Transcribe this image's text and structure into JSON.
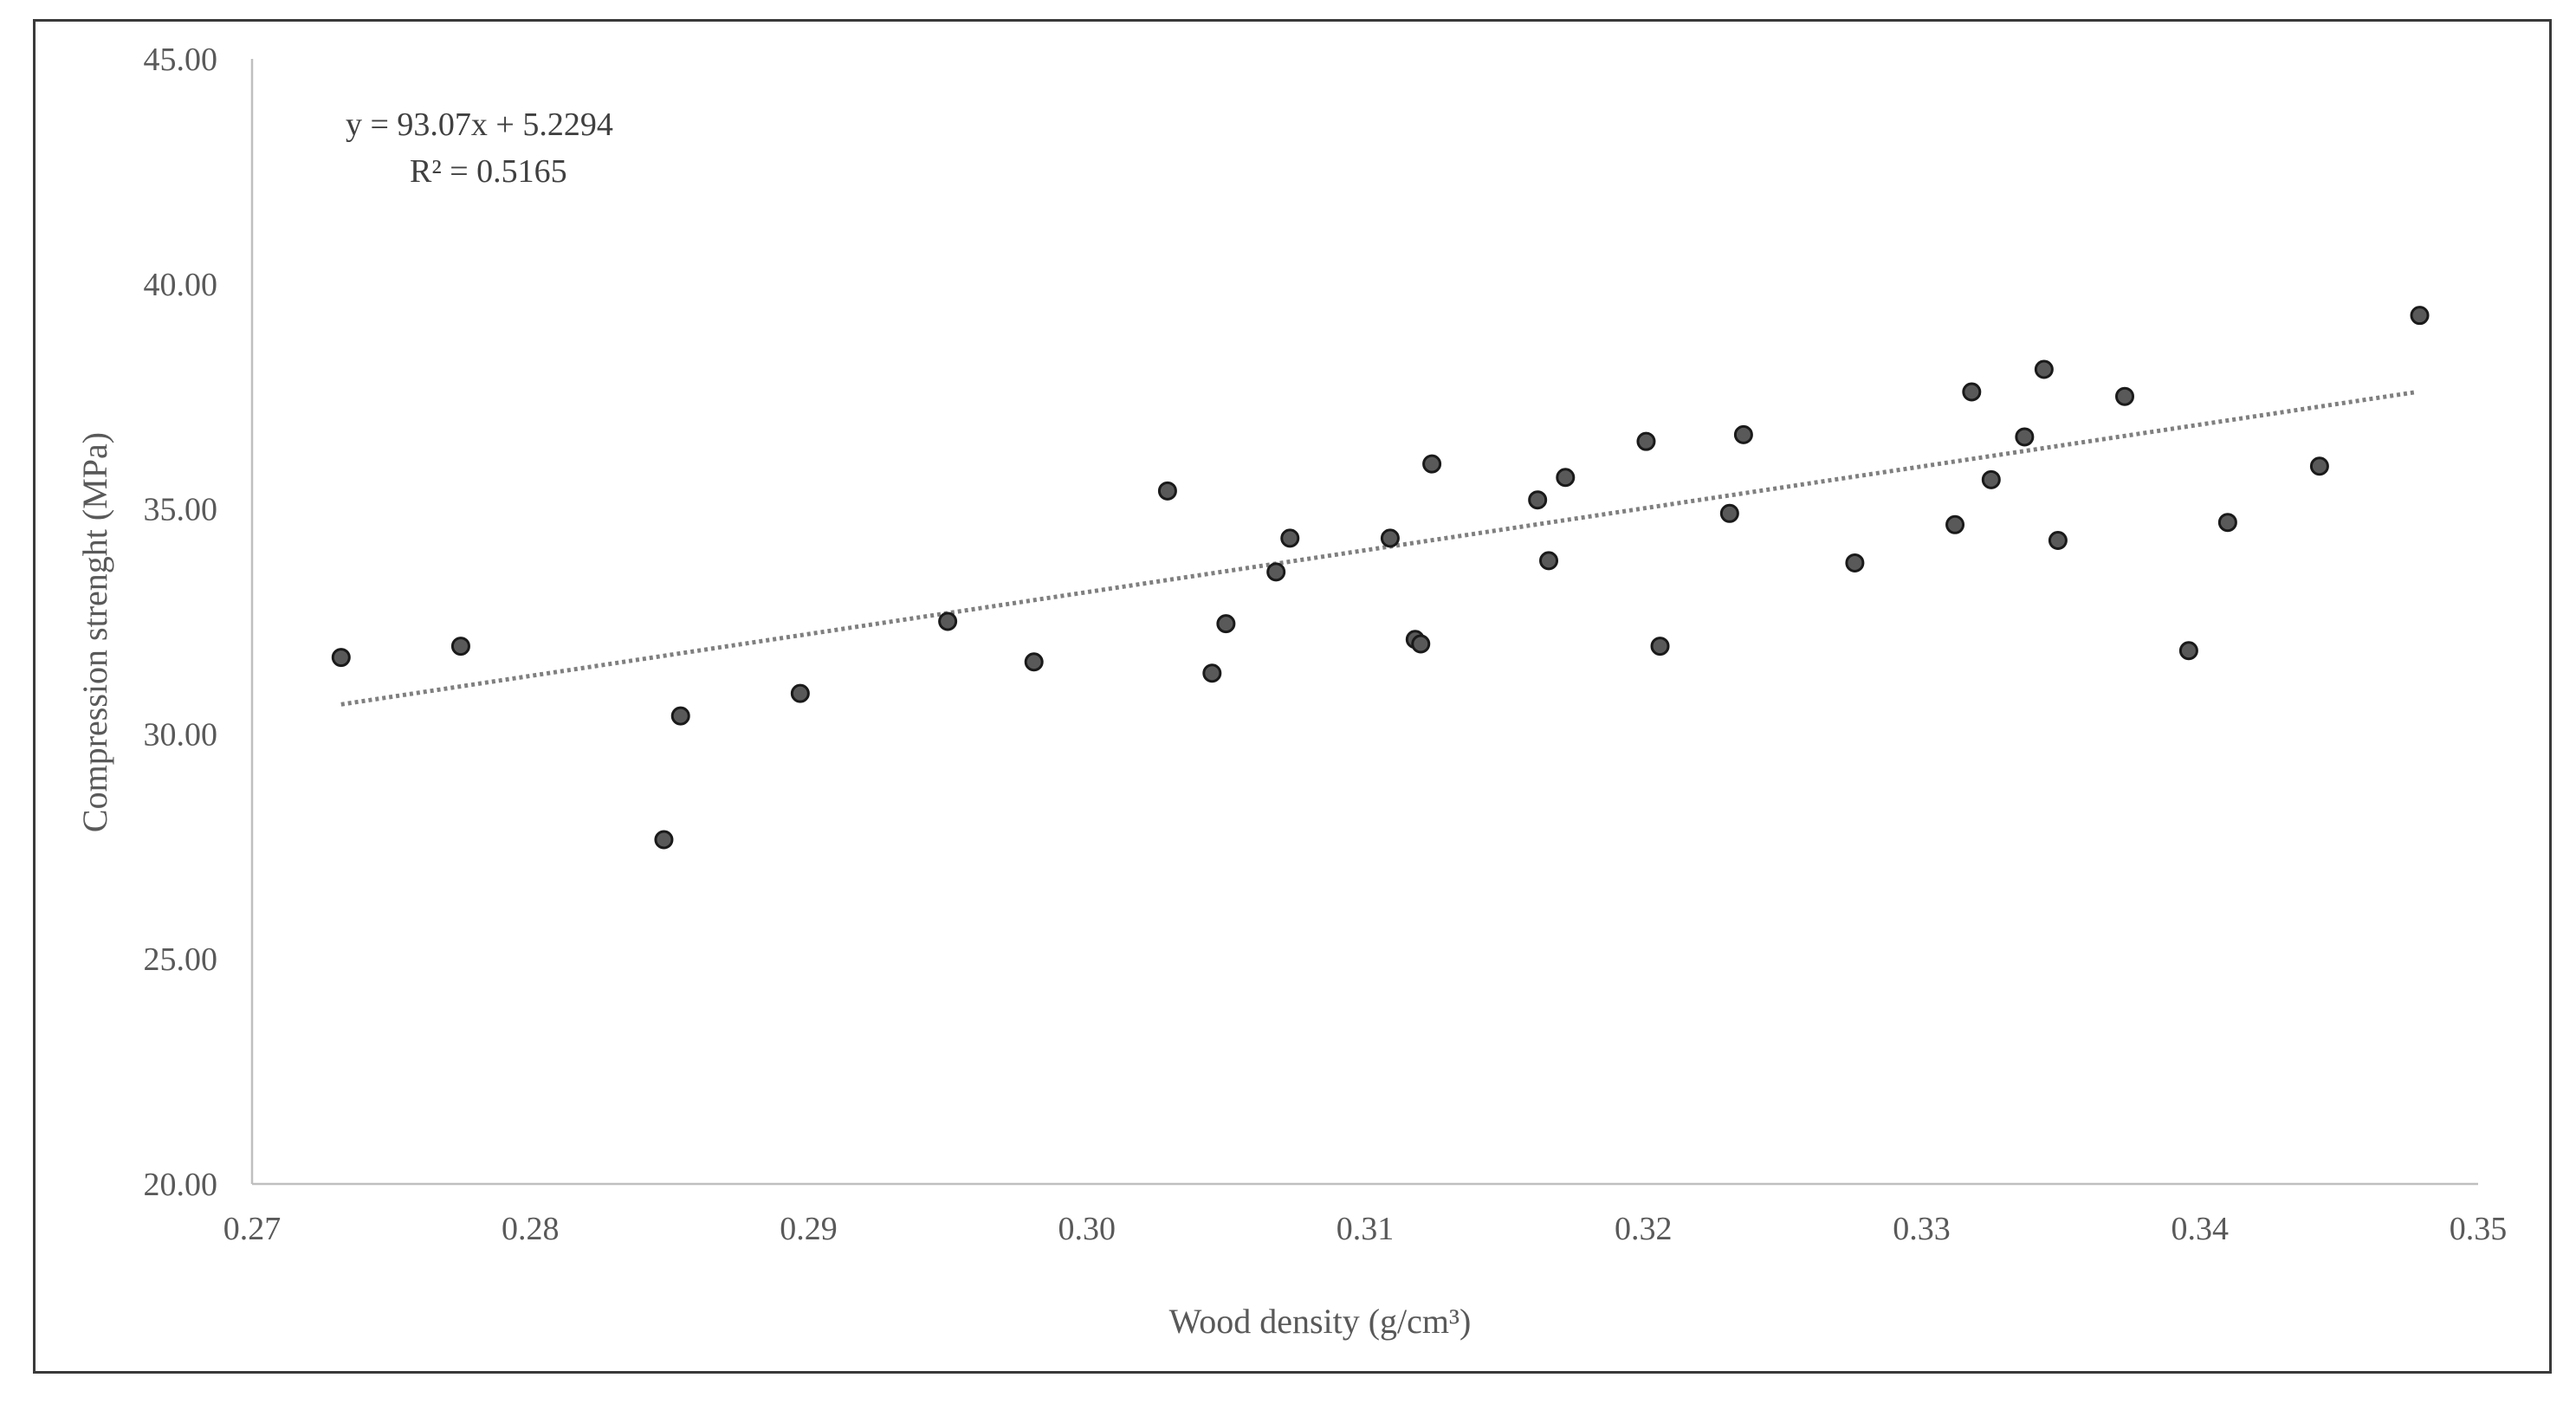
{
  "chart_data": {
    "type": "scatter",
    "xlabel": "Wood density (g/cm³)",
    "ylabel": "Compression strenght (MPa)",
    "xlim": [
      0.27,
      0.35
    ],
    "ylim": [
      20.0,
      45.0
    ],
    "x_ticks": [
      "0.27",
      "0.28",
      "0.29",
      "0.30",
      "0.31",
      "0.32",
      "0.33",
      "0.34",
      "0.35"
    ],
    "y_ticks": [
      "20.00",
      "25.00",
      "30.00",
      "35.00",
      "40.00",
      "45.00"
    ],
    "grid": false,
    "annotations": {
      "equation": "y = 93.07x + 5.2294",
      "r_squared": "R² = 0.5165"
    },
    "trendline": {
      "type": "linear",
      "style": "dotted",
      "slope": 93.07,
      "intercept": 5.2294,
      "x_range": [
        0.2732,
        0.3478
      ]
    },
    "points": [
      {
        "x": 0.2732,
        "y": 31.7
      },
      {
        "x": 0.2775,
        "y": 31.95
      },
      {
        "x": 0.2848,
        "y": 27.65
      },
      {
        "x": 0.2854,
        "y": 30.4
      },
      {
        "x": 0.2897,
        "y": 30.9
      },
      {
        "x": 0.295,
        "y": 32.5
      },
      {
        "x": 0.2981,
        "y": 31.6
      },
      {
        "x": 0.3029,
        "y": 35.4
      },
      {
        "x": 0.3045,
        "y": 31.35
      },
      {
        "x": 0.305,
        "y": 32.45
      },
      {
        "x": 0.3068,
        "y": 33.6
      },
      {
        "x": 0.3073,
        "y": 34.35
      },
      {
        "x": 0.3109,
        "y": 34.35
      },
      {
        "x": 0.3118,
        "y": 32.1
      },
      {
        "x": 0.312,
        "y": 32.0
      },
      {
        "x": 0.3124,
        "y": 36.0
      },
      {
        "x": 0.3162,
        "y": 35.2
      },
      {
        "x": 0.3166,
        "y": 33.85
      },
      {
        "x": 0.3172,
        "y": 35.7
      },
      {
        "x": 0.3201,
        "y": 36.5
      },
      {
        "x": 0.3206,
        "y": 31.95
      },
      {
        "x": 0.3231,
        "y": 34.9
      },
      {
        "x": 0.3236,
        "y": 36.65
      },
      {
        "x": 0.3276,
        "y": 33.8
      },
      {
        "x": 0.3312,
        "y": 34.65
      },
      {
        "x": 0.3318,
        "y": 37.6
      },
      {
        "x": 0.3325,
        "y": 35.65
      },
      {
        "x": 0.3337,
        "y": 36.6
      },
      {
        "x": 0.3344,
        "y": 38.1
      },
      {
        "x": 0.3349,
        "y": 34.3
      },
      {
        "x": 0.3373,
        "y": 37.5
      },
      {
        "x": 0.3396,
        "y": 31.85
      },
      {
        "x": 0.341,
        "y": 34.7
      },
      {
        "x": 0.3443,
        "y": 35.95
      },
      {
        "x": 0.3479,
        "y": 39.3
      }
    ],
    "colors": {
      "marker_fill": "#595959",
      "marker_stroke": "#1a1a1a",
      "trendline": "#7f7f7f",
      "axis": "#bfbfbf",
      "text": "#595959"
    }
  }
}
